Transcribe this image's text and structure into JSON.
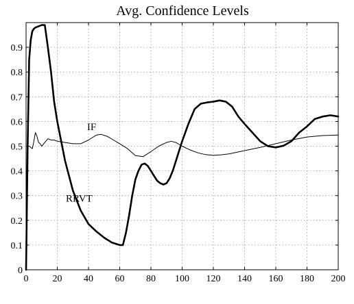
{
  "chart_data": {
    "type": "line",
    "title": "Avg. Confidence Levels",
    "xlabel": "",
    "ylabel": "",
    "xlim": [
      0,
      200
    ],
    "ylim": [
      0,
      1
    ],
    "grid": true,
    "x_ticks": [
      0,
      20,
      40,
      60,
      80,
      100,
      120,
      140,
      160,
      180,
      200
    ],
    "y_ticks": [
      0,
      0.1,
      0.2,
      0.3,
      0.4,
      0.5,
      0.6,
      0.7,
      0.8,
      0.9
    ],
    "series": [
      {
        "name": "IF",
        "style": "thin",
        "color": "#000000",
        "x": [
          0,
          2,
          4,
          5,
          6,
          7,
          8,
          9,
          10,
          12,
          14,
          16,
          18,
          20,
          25,
          30,
          35,
          40,
          45,
          48,
          52,
          56,
          60,
          65,
          70,
          75,
          80,
          85,
          90,
          93,
          96,
          100,
          105,
          110,
          115,
          120,
          125,
          130,
          140,
          150,
          160,
          170,
          180,
          190,
          200
        ],
        "y": [
          0.5,
          0.5,
          0.49,
          0.52,
          0.555,
          0.54,
          0.515,
          0.51,
          0.5,
          0.515,
          0.53,
          0.525,
          0.525,
          0.52,
          0.515,
          0.51,
          0.51,
          0.525,
          0.545,
          0.548,
          0.54,
          0.525,
          0.51,
          0.49,
          0.462,
          0.458,
          0.478,
          0.5,
          0.515,
          0.52,
          0.515,
          0.5,
          0.485,
          0.473,
          0.466,
          0.463,
          0.465,
          0.469,
          0.482,
          0.495,
          0.51,
          0.525,
          0.537,
          0.543,
          0.545
        ]
      },
      {
        "name": "RRVT",
        "style": "thick",
        "color": "#000000",
        "x": [
          0,
          1,
          2,
          3,
          4,
          5,
          6,
          8,
          10,
          12,
          14,
          16,
          18,
          20,
          25,
          30,
          35,
          40,
          45,
          50,
          55,
          60,
          62,
          64,
          66,
          68,
          70,
          72,
          74,
          76,
          78,
          80,
          82,
          84,
          86,
          88,
          90,
          92,
          94,
          96,
          98,
          100,
          104,
          108,
          112,
          116,
          120,
          124,
          128,
          132,
          136,
          140,
          145,
          150,
          155,
          160,
          165,
          170,
          175,
          180,
          185,
          190,
          195,
          200
        ],
        "y": [
          0,
          0.5,
          0.85,
          0.93,
          0.965,
          0.975,
          0.98,
          0.985,
          0.99,
          0.99,
          0.9,
          0.8,
          0.68,
          0.6,
          0.44,
          0.32,
          0.24,
          0.185,
          0.155,
          0.13,
          0.11,
          0.1,
          0.1,
          0.15,
          0.22,
          0.3,
          0.365,
          0.4,
          0.425,
          0.43,
          0.42,
          0.4,
          0.38,
          0.36,
          0.35,
          0.345,
          0.35,
          0.37,
          0.4,
          0.44,
          0.48,
          0.52,
          0.59,
          0.65,
          0.672,
          0.677,
          0.68,
          0.685,
          0.68,
          0.66,
          0.62,
          0.59,
          0.555,
          0.52,
          0.5,
          0.495,
          0.502,
          0.52,
          0.555,
          0.58,
          0.61,
          0.62,
          0.625,
          0.62
        ]
      }
    ],
    "annotations": [
      {
        "text": "IF",
        "series": "IF",
        "at_x": 42,
        "at_y": 0.565
      },
      {
        "text": "RRVT",
        "series": "RRVT",
        "at_x": 34,
        "at_y": 0.275
      }
    ]
  }
}
